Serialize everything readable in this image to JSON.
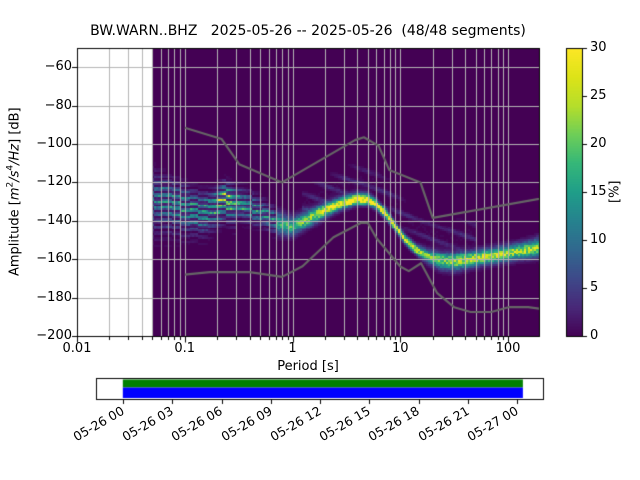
{
  "figure": {
    "title": "BW.WARN..BHZ   2025-05-26 -- 2025-05-26  (48/48 segments)"
  },
  "chart_data": {
    "type": "heatmap",
    "title": "BW.WARN..BHZ   2025-05-26 -- 2025-05-26  (48/48 segments)",
    "xlabel": "Period [s]",
    "ylabel": "Amplitude [m²/s⁴/Hz] [dB]",
    "ylabel_parts": {
      "prefix": "Amplitude [",
      "unit_m": "m",
      "sup_m": "2",
      "unit_s": "/s",
      "sup_s": "4",
      "unit_hz": "/Hz",
      "suffix": "] [dB]"
    },
    "x_axis": {
      "scale": "log",
      "min": 0.01,
      "max": 194,
      "tick_values": [
        0.01,
        0.1,
        1,
        10,
        100
      ],
      "tick_labels": [
        "0.01",
        "0.1",
        "1",
        "10",
        "100"
      ]
    },
    "y_axis": {
      "min": -200,
      "max": -50,
      "tick_values": [
        -60,
        -80,
        -100,
        -120,
        -140,
        -160,
        -180,
        -200
      ],
      "tick_labels": [
        "−60",
        "−80",
        "−100",
        "−120",
        "−140",
        "−160",
        "−180",
        "−200"
      ]
    },
    "colorbar": {
      "label": "[%]",
      "min": 0,
      "max": 30,
      "tick_values": [
        0,
        5,
        10,
        15,
        20,
        25,
        30
      ],
      "tick_labels": [
        "0",
        "5",
        "10",
        "15",
        "20",
        "25",
        "30"
      ],
      "colormap": "viridis",
      "stops": [
        "#440154",
        "#482878",
        "#3e4989",
        "#31688e",
        "#26828e",
        "#1f9e89",
        "#35b779",
        "#6ece58",
        "#b5de2b",
        "#dde318",
        "#fde725"
      ]
    },
    "colors": {
      "background": "#440154",
      "grid": "#b4b4b4",
      "noise_model": "#666666",
      "frame": "#000000"
    },
    "data_period_min": 0.05,
    "ppsd_mode_ridge": {
      "periods": [
        0.05,
        0.065,
        0.085,
        0.11,
        0.15,
        0.19,
        0.235,
        0.3,
        0.4,
        0.55,
        0.75,
        1.0,
        1.4,
        2.0,
        2.8,
        4.0,
        5.0,
        6.0,
        7.5,
        9.0,
        11,
        14,
        18,
        24,
        32,
        45,
        65,
        95,
        140,
        194
      ],
      "db": [
        -127.5,
        -128.5,
        -130.5,
        -132.5,
        -134,
        -131.5,
        -127.5,
        -130.5,
        -133,
        -136.5,
        -141.5,
        -143,
        -139,
        -134.5,
        -131,
        -128.6,
        -128.8,
        -131.5,
        -137,
        -143,
        -149.5,
        -155,
        -158.5,
        -160.8,
        -161.3,
        -160,
        -158.5,
        -157,
        -155.5,
        -154
      ],
      "peak_pct": [
        11,
        13,
        14,
        15,
        15,
        18,
        24,
        18,
        15,
        14,
        15,
        17,
        20,
        24,
        27,
        30,
        30,
        29,
        28,
        27,
        26,
        24,
        20,
        19,
        21,
        23,
        24,
        24,
        23,
        21
      ],
      "sigma_db": [
        7.5,
        6.5,
        6,
        5.5,
        5,
        4.5,
        4.2,
        4.5,
        4.5,
        4,
        3.5,
        3,
        2.6,
        2.3,
        2,
        1.9,
        1.8,
        1.6,
        1.5,
        1.4,
        1.4,
        1.6,
        2.2,
        2.8,
        2.8,
        2.6,
        2.5,
        2.5,
        2.6,
        3
      ]
    },
    "wing": {
      "period_range": [
        1.2,
        50
      ],
      "offset_db": [
        9,
        13
      ],
      "sigma_db": 5,
      "peak_pct": 2.6
    },
    "noise_models": {
      "nhnm": {
        "periods": [
          0.1,
          0.22,
          0.32,
          0.8,
          3.8,
          4.6,
          6.3,
          7.9,
          15.4,
          20.0,
          354.8
        ],
        "db": [
          -91.5,
          -97.4,
          -110.5,
          -120.0,
          -98.0,
          -96.5,
          -101.0,
          -113.5,
          -120.0,
          -138.5,
          -126.0
        ]
      },
      "nlnm": {
        "periods": [
          0.1,
          0.17,
          0.4,
          0.8,
          1.24,
          2.4,
          4.3,
          5.0,
          6.0,
          10.0,
          12.0,
          15.6,
          21.9,
          31.6,
          45.0,
          70.0,
          101.0,
          154.0,
          328.0
        ],
        "db": [
          -168.0,
          -166.7,
          -166.7,
          -169.2,
          -163.7,
          -148.6,
          -141.1,
          -141.1,
          -149.0,
          -163.8,
          -166.2,
          -162.1,
          -177.5,
          -185.0,
          -187.5,
          -187.5,
          -185.0,
          -185.0,
          -187.5
        ]
      }
    }
  },
  "timeline": {
    "tick_labels": [
      "05-26 00",
      "05-26 03",
      "05-26 06",
      "05-26 09",
      "05-26 12",
      "05-26 15",
      "05-26 18",
      "05-26 21",
      "05-27 00"
    ],
    "coverage": {
      "start_frac": 0.06,
      "end_frac": 0.955
    },
    "colors": {
      "top_bar": "#008000",
      "bottom_bar": "#0000ff",
      "frame": "#000000"
    }
  }
}
